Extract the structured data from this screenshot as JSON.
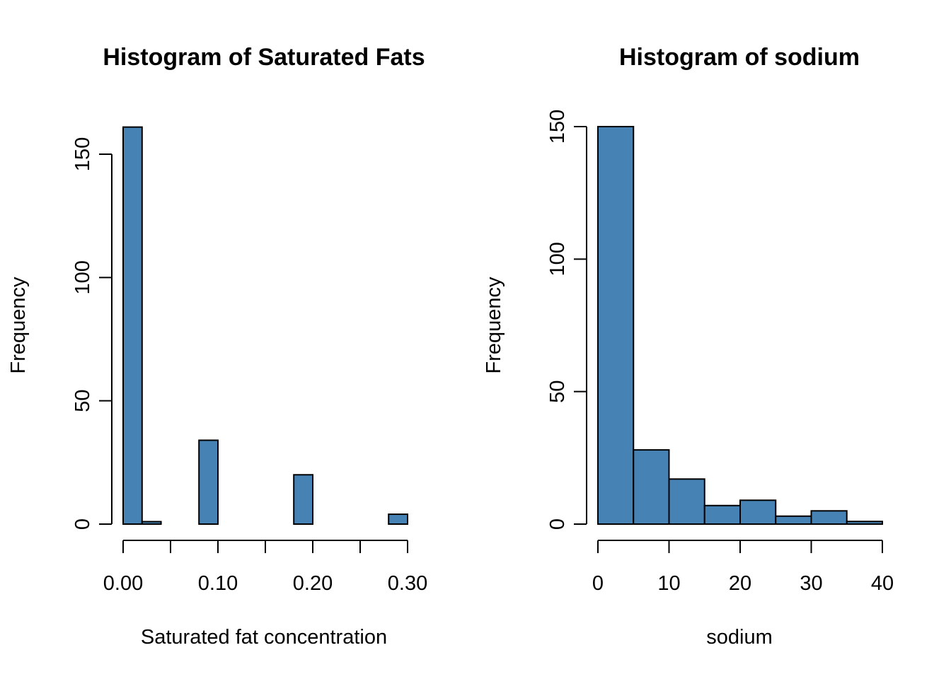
{
  "chart_data": [
    {
      "type": "bar",
      "title": "Histogram of Saturated Fats",
      "xlabel": "Saturated fat concentration",
      "ylabel": "Frequency",
      "xlim": [
        0,
        0.3
      ],
      "ylim": [
        0,
        150
      ],
      "bar_color": "#4682B4",
      "bin_width": 0.02,
      "bins": [
        {
          "start": 0.0,
          "end": 0.02,
          "count": 161
        },
        {
          "start": 0.02,
          "end": 0.04,
          "count": 1
        },
        {
          "start": 0.04,
          "end": 0.06,
          "count": 0
        },
        {
          "start": 0.06,
          "end": 0.08,
          "count": 0
        },
        {
          "start": 0.08,
          "end": 0.1,
          "count": 34
        },
        {
          "start": 0.1,
          "end": 0.12,
          "count": 0
        },
        {
          "start": 0.12,
          "end": 0.14,
          "count": 0
        },
        {
          "start": 0.14,
          "end": 0.16,
          "count": 0
        },
        {
          "start": 0.16,
          "end": 0.18,
          "count": 0
        },
        {
          "start": 0.18,
          "end": 0.2,
          "count": 20
        },
        {
          "start": 0.2,
          "end": 0.22,
          "count": 0
        },
        {
          "start": 0.22,
          "end": 0.24,
          "count": 0
        },
        {
          "start": 0.24,
          "end": 0.26,
          "count": 0
        },
        {
          "start": 0.26,
          "end": 0.28,
          "count": 0
        },
        {
          "start": 0.28,
          "end": 0.3,
          "count": 4
        }
      ],
      "x_ticks": [
        0.0,
        0.05,
        0.1,
        0.15,
        0.2,
        0.25,
        0.3
      ],
      "x_tick_labels": [
        {
          "value": 0.0,
          "label": "0.00"
        },
        {
          "value": 0.1,
          "label": "0.10"
        },
        {
          "value": 0.2,
          "label": "0.20"
        },
        {
          "value": 0.3,
          "label": "0.30"
        }
      ],
      "y_ticks": [
        0,
        50,
        100,
        150
      ],
      "y_tick_labels": [
        "0",
        "50",
        "100",
        "150"
      ]
    },
    {
      "type": "bar",
      "title": "Histogram of sodium",
      "xlabel": "sodium",
      "ylabel": "Frequency",
      "xlim": [
        0,
        40
      ],
      "ylim": [
        0,
        150
      ],
      "bar_color": "#4682B4",
      "bin_width": 5,
      "bins": [
        {
          "start": 0,
          "end": 5,
          "count": 150
        },
        {
          "start": 5,
          "end": 10,
          "count": 28
        },
        {
          "start": 10,
          "end": 15,
          "count": 17
        },
        {
          "start": 15,
          "end": 20,
          "count": 7
        },
        {
          "start": 20,
          "end": 25,
          "count": 9
        },
        {
          "start": 25,
          "end": 30,
          "count": 3
        },
        {
          "start": 30,
          "end": 35,
          "count": 5
        },
        {
          "start": 35,
          "end": 40,
          "count": 1
        }
      ],
      "x_ticks": [
        0,
        10,
        20,
        30,
        40
      ],
      "x_tick_labels": [
        {
          "value": 0,
          "label": "0"
        },
        {
          "value": 10,
          "label": "10"
        },
        {
          "value": 20,
          "label": "20"
        },
        {
          "value": 30,
          "label": "30"
        },
        {
          "value": 40,
          "label": "40"
        }
      ],
      "y_ticks": [
        0,
        50,
        100,
        150
      ],
      "y_tick_labels": [
        "0",
        "50",
        "100",
        "150"
      ]
    }
  ]
}
